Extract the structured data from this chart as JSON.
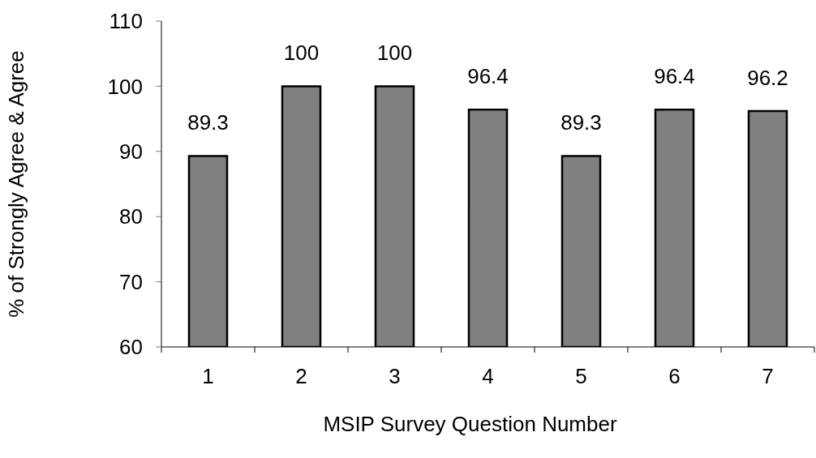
{
  "chart_data": {
    "type": "bar",
    "xlabel": "MSIP Survey Question Number",
    "ylabel": "% of Strongly Agree & Agree",
    "categories": [
      "1",
      "2",
      "3",
      "4",
      "5",
      "6",
      "7"
    ],
    "values": [
      89.3,
      100,
      100,
      96.4,
      89.3,
      96.4,
      96.2
    ],
    "color": "#808080",
    "ylim": [
      60,
      110
    ],
    "yticks": [
      60,
      70,
      80,
      90,
      100,
      110
    ],
    "data_labels": true,
    "grid": false
  }
}
